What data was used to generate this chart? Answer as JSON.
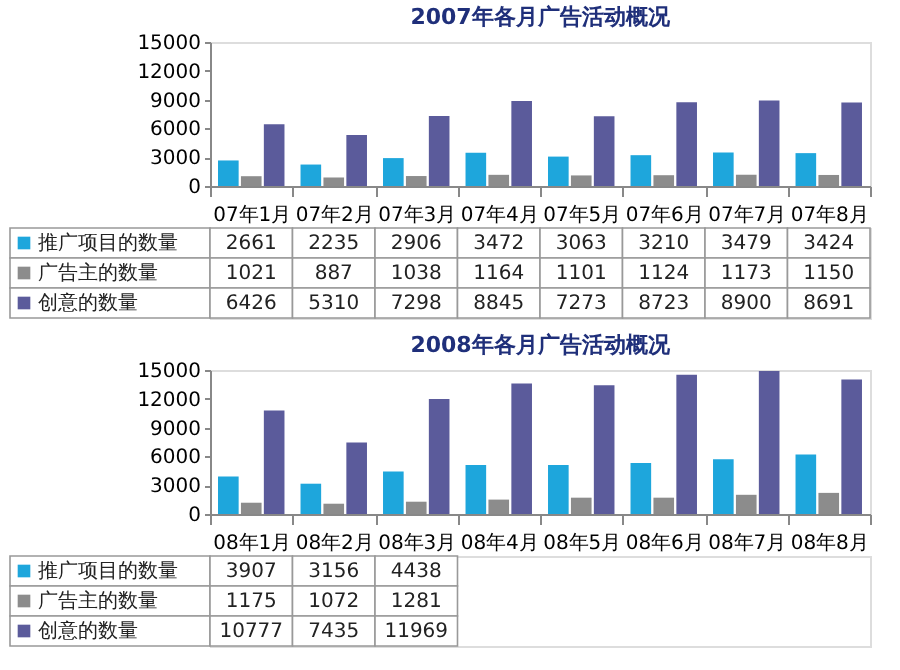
{
  "chart_data": [
    {
      "type": "bar",
      "title": "2007年各月广告活动概况",
      "categories": [
        "07年1月",
        "07年2月",
        "07年3月",
        "07年4月",
        "07年5月",
        "07年6月",
        "07年7月",
        "07年8月"
      ],
      "ylim": [
        0,
        15000
      ],
      "yticks": [
        0,
        3000,
        6000,
        9000,
        12000,
        15000
      ],
      "grid": false,
      "legend": "bottom",
      "series": [
        {
          "name": "推广项目的数量",
          "color": "#1ea6dc",
          "values": [
            2661,
            2235,
            2906,
            3472,
            3063,
            3210,
            3479,
            3424
          ],
          "value_labels": [
            "2661",
            "2235",
            "2906",
            "3472",
            "3063",
            "3210",
            "3479",
            "3424"
          ]
        },
        {
          "name": "广告主的数量",
          "color": "#8c8c8c",
          "values": [
            1021,
            887,
            1038,
            1164,
            1101,
            1124,
            1173,
            1150
          ],
          "value_labels": [
            "1021",
            "887",
            "1038",
            "1164",
            "1101",
            "1124",
            "1173",
            "1150"
          ]
        },
        {
          "name": "创意的数量",
          "color": "#5b5b9b",
          "values": [
            6426,
            5310,
            7298,
            8845,
            7273,
            8723,
            8900,
            8691
          ],
          "value_labels": [
            "6426",
            "5310",
            "7298",
            "8845",
            "7273",
            "8723",
            "8900",
            "8691"
          ]
        }
      ]
    },
    {
      "type": "bar",
      "title": "2008年各月广告活动概况",
      "categories": [
        "08年1月",
        "08年2月",
        "08年3月",
        "08年4月",
        "08年5月",
        "08年6月",
        "08年7月",
        "08年8月"
      ],
      "ylim": [
        0,
        15000
      ],
      "yticks": [
        0,
        3000,
        6000,
        9000,
        12000,
        15000
      ],
      "grid": false,
      "legend": "bottom",
      "series": [
        {
          "name": "推广项目的数量",
          "color": "#1ea6dc",
          "values": [
            3907,
            3156,
            4438,
            5100,
            5100,
            5300,
            5700,
            6200
          ],
          "value_labels": [
            "3907",
            "3156",
            "4438",
            null,
            null,
            null,
            null,
            null
          ]
        },
        {
          "name": "广告主的数量",
          "color": "#8c8c8c",
          "values": [
            1175,
            1072,
            1281,
            1500,
            1700,
            1700,
            2000,
            2200
          ],
          "value_labels": [
            "1175",
            "1072",
            "1281",
            null,
            null,
            null,
            null,
            null
          ]
        },
        {
          "name": "创意的数量",
          "color": "#5b5b9b",
          "values": [
            10777,
            7435,
            11969,
            13600,
            13400,
            14500,
            14900,
            14000
          ],
          "value_labels": [
            "10777",
            "7435",
            "11969",
            null,
            null,
            null,
            null,
            null
          ]
        }
      ]
    }
  ]
}
